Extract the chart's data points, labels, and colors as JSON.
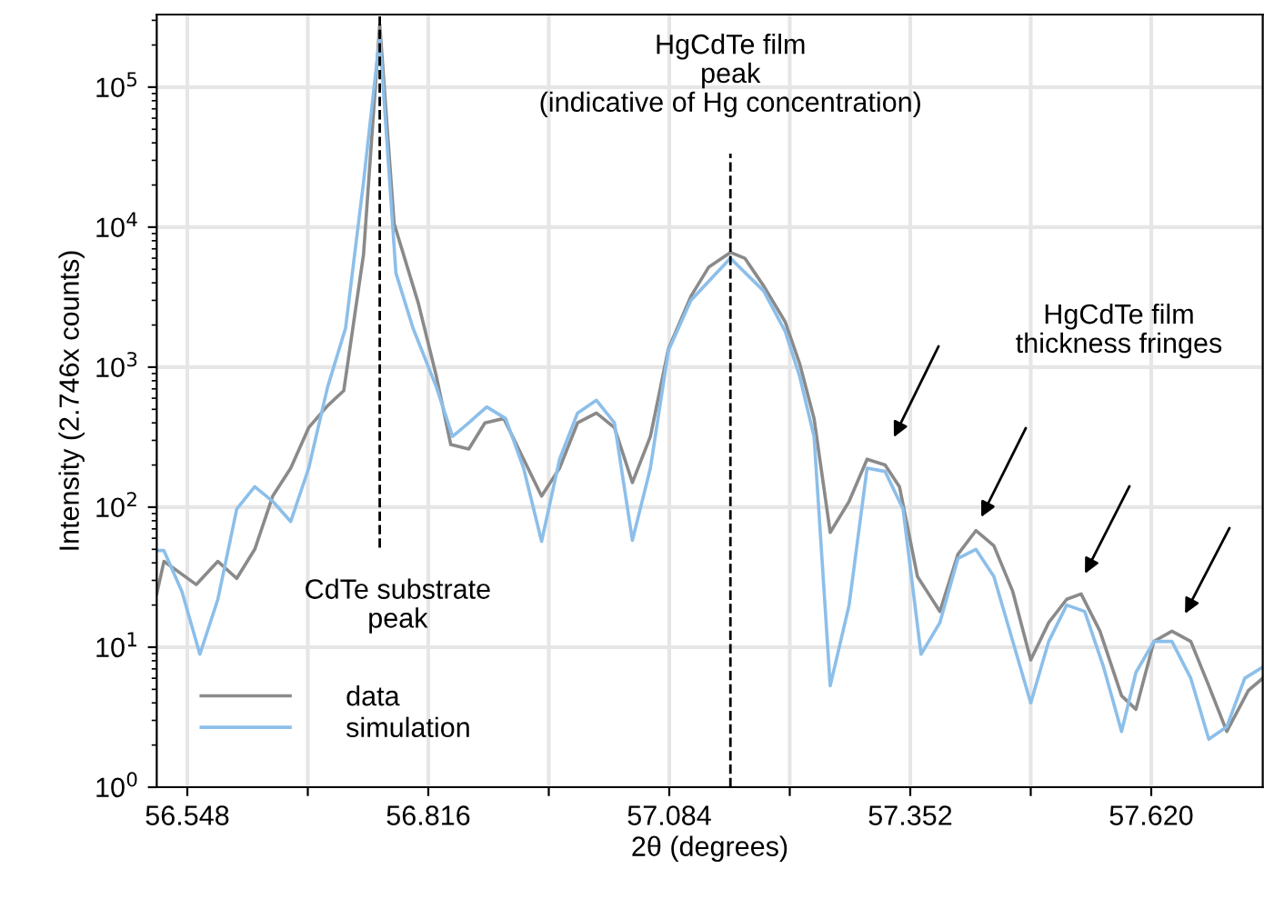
{
  "chart_data": {
    "type": "line",
    "xlabel": "2θ (degrees)",
    "ylabel": "Intensity (2.746x counts)",
    "log": "y",
    "grid": true,
    "legend": "bottom left",
    "line_style": "solid",
    "marker": "none",
    "xlim": [
      56.514,
      57.744
    ],
    "ylim": [
      1,
      330000
    ],
    "xticks": [
      56.548,
      {
        "value": 56.682,
        "label": null
      },
      56.816,
      {
        "value": 56.95,
        "label": null
      },
      57.084,
      {
        "value": 57.218,
        "label": null
      },
      57.352,
      {
        "value": 57.486,
        "label": null
      },
      {
        "value": 57.62,
        "label": "57.620"
      }
    ],
    "yticks": [
      {
        "value": 1,
        "label": "10$^{0}$"
      },
      {
        "value": 10,
        "label": "10$^{1}$"
      },
      {
        "value": 100,
        "label": "10$^{2}$"
      },
      {
        "value": 1000,
        "label": "10$^{3}$"
      },
      {
        "value": 10000,
        "label": "10$^{4}$"
      },
      {
        "value": 100000,
        "label": "10$^{5}$"
      }
    ],
    "series": [
      {
        "name": "data",
        "color": "#8a8a8a",
        "x": [
          56.514,
          56.522,
          56.558,
          56.582,
          56.603,
          56.623,
          56.643,
          56.663,
          56.683,
          56.704,
          56.722,
          56.744,
          56.762,
          56.778,
          56.805,
          56.825,
          56.841,
          56.861,
          56.879,
          56.9,
          56.922,
          56.942,
          56.962,
          56.982,
          57.003,
          57.023,
          57.043,
          57.063,
          57.083,
          57.108,
          57.128,
          57.152,
          57.168,
          57.189,
          57.213,
          57.229,
          57.245,
          57.263,
          57.284,
          57.304,
          57.324,
          57.34,
          57.36,
          57.385,
          57.405,
          57.425,
          57.445,
          57.466,
          57.486,
          57.506,
          57.526,
          57.542,
          57.563,
          57.587,
          57.603,
          57.623,
          57.643,
          57.664,
          57.684,
          57.704,
          57.728,
          57.744
        ],
        "values": [
          24,
          41,
          28,
          41,
          31,
          50,
          120,
          190,
          370,
          530,
          680,
          6400,
          280000,
          10600,
          2850,
          860,
          280,
          260,
          400,
          430,
          220,
          120,
          190,
          400,
          470,
          370,
          150,
          320,
          1350,
          3200,
          5200,
          6600,
          6000,
          3800,
          2100,
          1060,
          430,
          66,
          110,
          220,
          200,
          140,
          32,
          18,
          46,
          68,
          53,
          25,
          8.1,
          15,
          22,
          24,
          13,
          4.5,
          3.6,
          11,
          13,
          11,
          5.3,
          2.5,
          4.9,
          6.0
        ]
      },
      {
        "name": "simulation",
        "color": "#8cbfea",
        "x": [
          56.514,
          56.522,
          56.542,
          56.562,
          56.582,
          56.603,
          56.623,
          56.643,
          56.663,
          56.683,
          56.704,
          56.724,
          56.744,
          56.762,
          56.78,
          56.799,
          56.825,
          56.843,
          56.861,
          56.881,
          56.902,
          56.922,
          56.942,
          56.962,
          56.982,
          57.003,
          57.023,
          57.043,
          57.063,
          57.083,
          57.108,
          57.152,
          57.189,
          57.213,
          57.229,
          57.245,
          57.263,
          57.284,
          57.304,
          57.324,
          57.344,
          57.364,
          57.385,
          57.405,
          57.425,
          57.445,
          57.466,
          57.486,
          57.506,
          57.526,
          57.546,
          57.567,
          57.587,
          57.603,
          57.623,
          57.643,
          57.664,
          57.684,
          57.704,
          57.724,
          57.744
        ],
        "values": [
          49,
          49,
          25,
          8.9,
          22,
          97,
          140,
          110,
          79,
          190,
          720,
          1900,
          21000,
          230000,
          4700,
          1900,
          720,
          320,
          400,
          520,
          430,
          190,
          57,
          220,
          470,
          580,
          400,
          58,
          190,
          1310,
          3000,
          6000,
          3500,
          1800,
          860,
          320,
          5.3,
          20,
          190,
          180,
          97,
          8.9,
          15,
          43,
          50,
          32,
          11,
          4.0,
          11,
          20,
          18,
          7.2,
          2.5,
          6.6,
          11,
          11,
          6.0,
          2.2,
          2.7,
          6.0,
          7.2
        ]
      }
    ],
    "ref_lines": [
      {
        "axis": "x",
        "value": 56.762,
        "label": "CdTe substrate\npeak",
        "line_style": "dashed",
        "color": "#000000"
      },
      {
        "axis": "x",
        "value": 57.152,
        "label": "HgCdTe film\npeak\n(indicative of Hg concentration)",
        "line_style": "dashed",
        "color": "#000000"
      }
    ],
    "annotations": [
      "HgCdTe film\nthickness fringes"
    ]
  }
}
